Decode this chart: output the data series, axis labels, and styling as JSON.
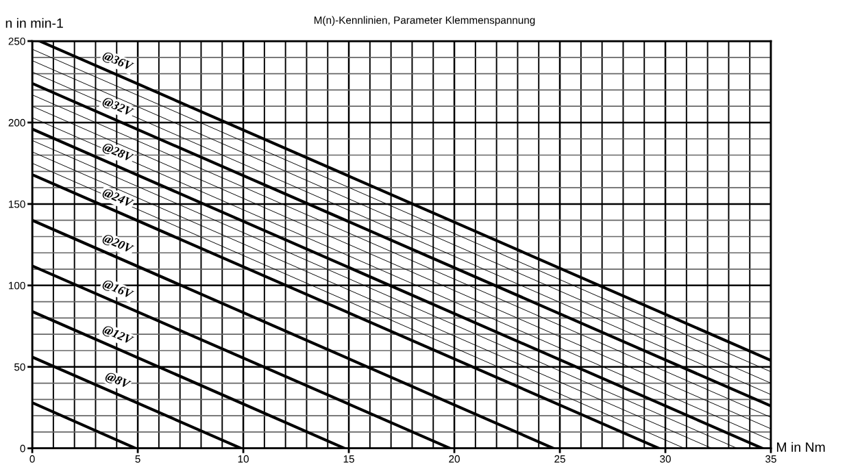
{
  "chart_data": {
    "type": "line",
    "title": "M(n)-Kennlinien, Parameter Klemmenspannung",
    "xlabel": "M in Nm",
    "ylabel": "n in min-1",
    "xlim": [
      0,
      35
    ],
    "ylim": [
      0,
      250
    ],
    "xticks": [
      0,
      {
        "value": 1,
        "label": null
      },
      {
        "value": 2,
        "label": null
      },
      {
        "value": 3,
        "label": null
      },
      {
        "value": 4,
        "label": null
      },
      5,
      {
        "value": 6,
        "label": null
      },
      {
        "value": 7,
        "label": null
      },
      {
        "value": 8,
        "label": null
      },
      {
        "value": 9,
        "label": null
      },
      10,
      {
        "value": 11,
        "label": null
      },
      {
        "value": 12,
        "label": null
      },
      {
        "value": 13,
        "label": null
      },
      {
        "value": 14,
        "label": null
      },
      15,
      {
        "value": 16,
        "label": null
      },
      {
        "value": 17,
        "label": null
      },
      {
        "value": 18,
        "label": null
      },
      {
        "value": 19,
        "label": null
      },
      20,
      {
        "value": 21,
        "label": null
      },
      {
        "value": 22,
        "label": null
      },
      {
        "value": 23,
        "label": null
      },
      {
        "value": 24,
        "label": null
      },
      25,
      {
        "value": 26,
        "label": null
      },
      {
        "value": 27,
        "label": null
      },
      {
        "value": 28,
        "label": null
      },
      {
        "value": 29,
        "label": null
      },
      30,
      {
        "value": 31,
        "label": null
      },
      {
        "value": 32,
        "label": null
      },
      {
        "value": 33,
        "label": null
      },
      {
        "value": 34,
        "label": null
      },
      35
    ],
    "yticks": [
      0,
      {
        "value": 10,
        "label": null
      },
      {
        "value": 20,
        "label": null
      },
      {
        "value": 30,
        "label": null
      },
      {
        "value": 40,
        "label": null
      },
      50,
      {
        "value": 60,
        "label": null
      },
      {
        "value": 70,
        "label": null
      },
      {
        "value": 80,
        "label": null
      },
      {
        "value": 90,
        "label": null
      },
      100,
      {
        "value": 110,
        "label": null
      },
      {
        "value": 120,
        "label": null
      },
      {
        "value": 130,
        "label": null
      },
      {
        "value": 140,
        "label": null
      },
      150,
      {
        "value": 160,
        "label": null
      },
      {
        "value": 170,
        "label": null
      },
      {
        "value": 180,
        "label": null
      },
      {
        "value": 190,
        "label": null
      },
      200,
      {
        "value": 210,
        "label": null
      },
      {
        "value": 220,
        "label": null
      },
      {
        "value": 230,
        "label": null
      },
      {
        "value": 240,
        "label": null
      },
      250
    ],
    "grid": true,
    "marker": "none",
    "line_style": "solid",
    "series": [
      {
        "color": "#000000",
        "x": [
          0,
          4.9
        ],
        "values": [
          28,
          0
        ]
      },
      {
        "name": "@8V",
        "color": "#000000",
        "x": [
          0,
          9.9
        ],
        "values": [
          56,
          0
        ]
      },
      {
        "name": "@12V",
        "color": "#000000",
        "x": [
          0,
          14.8
        ],
        "values": [
          84,
          0
        ]
      },
      {
        "name": "@16V",
        "color": "#000000",
        "x": [
          0,
          19.8
        ],
        "values": [
          112,
          0
        ]
      },
      {
        "name": "@20V",
        "color": "#000000",
        "x": [
          0,
          24.7
        ],
        "values": [
          140,
          0
        ]
      },
      {
        "name": "@24V",
        "color": "#000000",
        "x": [
          0,
          29.7
        ],
        "values": [
          168,
          0
        ]
      },
      {
        "color": "#000000",
        "x": [
          0,
          30.9
        ],
        "values": [
          175,
          0
        ]
      },
      {
        "color": "#000000",
        "x": [
          0,
          32.2
        ],
        "values": [
          182,
          0
        ]
      },
      {
        "color": "#000000",
        "x": [
          0,
          33.4
        ],
        "values": [
          189,
          0
        ]
      },
      {
        "name": "@28V",
        "color": "#000000",
        "x": [
          0,
          34.6
        ],
        "values": [
          196,
          0
        ]
      },
      {
        "color": "#000000",
        "x": [
          0,
          35
        ],
        "values": [
          203,
          5
        ]
      },
      {
        "color": "#000000",
        "x": [
          0,
          35
        ],
        "values": [
          210,
          12
        ]
      },
      {
        "color": "#000000",
        "x": [
          0,
          35
        ],
        "values": [
          217,
          19
        ]
      },
      {
        "name": "@32V",
        "color": "#000000",
        "x": [
          0,
          35
        ],
        "values": [
          224,
          26
        ]
      },
      {
        "color": "#000000",
        "x": [
          0,
          35
        ],
        "values": [
          231,
          33
        ]
      },
      {
        "color": "#000000",
        "x": [
          0,
          35
        ],
        "values": [
          238,
          40
        ]
      },
      {
        "color": "#000000",
        "x": [
          0,
          35
        ],
        "values": [
          245,
          47
        ]
      },
      {
        "name": "@36V",
        "color": "#000000",
        "x": [
          0.35,
          35
        ],
        "values": [
          250,
          54
        ]
      }
    ]
  }
}
